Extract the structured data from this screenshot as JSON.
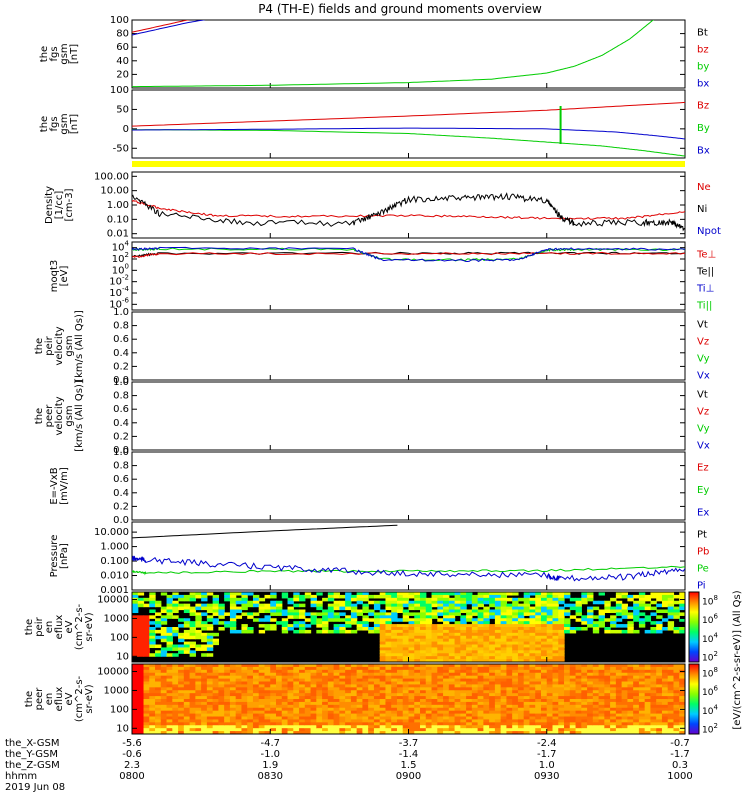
{
  "title": "P4 (TH-E) fields and ground moments overview",
  "footer": {
    "row_labels": [
      "the_X-GSM",
      "the_Y-GSM",
      "the_Z-GSM",
      "hhmm",
      "2019 Jun 08"
    ],
    "columns": [
      {
        "x": "-5.6",
        "y": "-0.6",
        "z": "2.3",
        "time": "0800"
      },
      {
        "x": "-4.7",
        "y": "-1.0",
        "z": "1.9",
        "time": "0830"
      },
      {
        "x": "-3.7",
        "y": "-1.4",
        "z": "1.5",
        "time": "0900"
      },
      {
        "x": "-2.4",
        "y": "-1.7",
        "z": "1.0",
        "time": "0930"
      },
      {
        "x": "-0.7",
        "y": "-1.7",
        "z": "0.3",
        "time": "1000"
      }
    ]
  },
  "colorbar": {
    "label": "[eV/(cm^2-s-sr-eV)] (All Qs)",
    "ticks_top": [
      "10^8",
      "10^6",
      "10^4",
      "10^2"
    ],
    "ticks_bottom": [
      "10^8",
      "10^6",
      "10^4",
      "10^2"
    ],
    "colors": [
      "#ff0000",
      "#ff8800",
      "#ffff00",
      "#88ff00",
      "#00ff66",
      "#00ccff",
      "#0044ff",
      "#6600cc"
    ]
  },
  "chart_data": [
    {
      "type": "line",
      "id": "fgs_btot",
      "ylabel": [
        "the",
        "fgs",
        "gsm",
        "[nT]"
      ],
      "ylim": [
        0,
        100
      ],
      "scale": "linear",
      "yticks": [
        "100",
        "80",
        "60",
        "40",
        "20"
      ],
      "x_hours": [
        8.0,
        10.0
      ],
      "legend": [
        {
          "name": "Bt",
          "color": "#000000"
        },
        {
          "name": "bz",
          "color": "#dd0000"
        },
        {
          "name": "by",
          "color": "#00cc00"
        },
        {
          "name": "bx",
          "color": "#0000cc"
        }
      ],
      "series": [
        {
          "name": "bz",
          "color": "#dd0000",
          "x": [
            8.0,
            8.2,
            8.4
          ],
          "y": [
            82,
            100,
            115
          ]
        },
        {
          "name": "bx",
          "color": "#0000cc",
          "x": [
            8.0,
            8.2,
            8.4
          ],
          "y": [
            78,
            96,
            110
          ]
        },
        {
          "name": "by",
          "color": "#00cc00",
          "x": [
            8.0,
            8.5,
            9.0,
            9.3,
            9.5,
            9.6,
            9.7,
            9.8,
            9.9
          ],
          "y": [
            2,
            4,
            8,
            13,
            22,
            32,
            48,
            72,
            105
          ]
        }
      ]
    },
    {
      "type": "line",
      "id": "fgs_gsm",
      "ylabel": [
        "the",
        "fgs",
        "gsm",
        "[nT]"
      ],
      "ylim": [
        -75,
        100
      ],
      "scale": "linear",
      "yticks": [
        "100",
        "50",
        "0",
        "-50"
      ],
      "x_hours": [
        8.0,
        10.0
      ],
      "legend": [
        {
          "name": "Bz",
          "color": "#dd0000"
        },
        {
          "name": "By",
          "color": "#00cc00"
        },
        {
          "name": "Bx",
          "color": "#0000cc"
        }
      ],
      "series": [
        {
          "name": "Bz",
          "color": "#dd0000",
          "x": [
            8.0,
            8.5,
            9.0,
            9.5,
            10.0
          ],
          "y": [
            7,
            20,
            33,
            48,
            68
          ]
        },
        {
          "name": "By",
          "color": "#00cc00",
          "x": [
            8.0,
            8.5,
            9.0,
            9.3,
            9.5,
            9.7,
            9.85,
            10.0
          ],
          "y": [
            -2,
            -4,
            -12,
            -24,
            -34,
            -44,
            -56,
            -70
          ]
        },
        {
          "name": "Bx",
          "color": "#0000cc",
          "x": [
            8.0,
            8.5,
            9.0,
            9.5,
            9.75,
            9.9,
            10.0
          ],
          "y": [
            -3,
            -1,
            2,
            0,
            -8,
            -18,
            -26
          ]
        }
      ]
    },
    {
      "type": "line",
      "id": "density",
      "ylabel": [
        "Density",
        "[1/cc]",
        "[cm-3]"
      ],
      "ylim": [
        0.005,
        200
      ],
      "scale": "log",
      "yticks": [
        "100.00",
        "10.00",
        "1.00",
        "0.10",
        "0.01"
      ],
      "x_hours": [
        8.0,
        10.0
      ],
      "legend": [
        {
          "name": "Ne",
          "color": "#dd0000"
        },
        {
          "name": "Ni",
          "color": "#000000"
        },
        {
          "name": "Npot",
          "color": "#0000cc"
        }
      ],
      "series": [
        {
          "name": "Ne",
          "color": "#dd0000",
          "x": [
            8.0,
            8.1,
            8.3,
            8.6,
            9.0,
            9.3,
            9.55,
            9.8,
            10.0
          ],
          "y": [
            2.0,
            0.6,
            0.18,
            0.16,
            0.18,
            0.15,
            0.11,
            0.12,
            0.35
          ]
        },
        {
          "name": "Ni",
          "color": "#000000",
          "x": [
            8.0,
            8.1,
            8.4,
            8.8,
            8.9,
            9.0,
            9.2,
            9.35,
            9.5,
            9.55,
            9.6,
            9.85,
            9.95,
            10.0
          ],
          "y": [
            5.0,
            0.25,
            0.06,
            0.05,
            0.3,
            2.5,
            3.0,
            4.0,
            2.0,
            0.15,
            0.05,
            0.06,
            0.06,
            0.02
          ]
        }
      ]
    },
    {
      "type": "line",
      "id": "temperature",
      "ylabel": [
        "moqt3",
        "[eV]"
      ],
      "ylim": [
        1e-07,
        100000
      ],
      "scale": "log",
      "yticks": [
        "10^4",
        "10^2",
        "10^0",
        "10^-2",
        "10^-4",
        "10^-6"
      ],
      "x_hours": [
        8.0,
        10.0
      ],
      "legend": [
        {
          "name": "Te⊥",
          "color": "#dd0000"
        },
        {
          "name": "Te||",
          "color": "#000000"
        },
        {
          "name": "Ti⊥",
          "color": "#0000cc"
        },
        {
          "name": "Ti||",
          "color": "#00cc00"
        }
      ],
      "series": [
        {
          "name": "Te||",
          "color": "#000000",
          "x": [
            8.0,
            8.1,
            9.0,
            9.5,
            10.0
          ],
          "y": [
            300,
            1000,
            1000,
            1000,
            1200
          ]
        },
        {
          "name": "Te⊥",
          "color": "#dd0000",
          "x": [
            8.0,
            8.1,
            9.0,
            9.5,
            10.0
          ],
          "y": [
            200,
            900,
            900,
            900,
            1100
          ]
        },
        {
          "name": "Ti||",
          "color": "#00cc00",
          "x": [
            8.0,
            8.1,
            8.8,
            8.9,
            9.2,
            9.4,
            9.5,
            9.6,
            10.0
          ],
          "y": [
            4000,
            6000,
            5000,
            100,
            70,
            100,
            4000,
            5000,
            4500
          ]
        },
        {
          "name": "Ti⊥",
          "color": "#0000cc",
          "x": [
            8.0,
            8.1,
            8.8,
            8.9,
            9.2,
            9.4,
            9.5,
            9.6,
            10.0
          ],
          "y": [
            5000,
            8000,
            6000,
            80,
            50,
            80,
            5000,
            6000,
            5000
          ]
        }
      ]
    },
    {
      "type": "line",
      "id": "peir_velocity",
      "ylabel": [
        "the",
        "peir",
        "velocity",
        "gsm",
        "[km/s (All Qs)]"
      ],
      "ylim": [
        0,
        1
      ],
      "scale": "linear",
      "yticks": [
        "1.0",
        "0.8",
        "0.6",
        "0.4",
        "0.2",
        "0.0"
      ],
      "x_hours": [
        8.0,
        10.0
      ],
      "legend": [
        {
          "name": "Vt",
          "color": "#000000"
        },
        {
          "name": "Vz",
          "color": "#dd0000"
        },
        {
          "name": "Vy",
          "color": "#00cc00"
        },
        {
          "name": "Vx",
          "color": "#0000cc"
        }
      ],
      "series": []
    },
    {
      "type": "line",
      "id": "peer_velocity",
      "ylabel": [
        "the",
        "peer",
        "velocity",
        "gsm",
        "[km/s (All Qs)]"
      ],
      "ylim": [
        0,
        1
      ],
      "scale": "linear",
      "yticks": [
        "1.0",
        "0.8",
        "0.6",
        "0.4",
        "0.2",
        "0.0"
      ],
      "x_hours": [
        8.0,
        10.0
      ],
      "legend": [
        {
          "name": "Vt",
          "color": "#000000"
        },
        {
          "name": "Vz",
          "color": "#dd0000"
        },
        {
          "name": "Vy",
          "color": "#00cc00"
        },
        {
          "name": "Vx",
          "color": "#0000cc"
        }
      ],
      "series": []
    },
    {
      "type": "line",
      "id": "e_field",
      "ylabel": [
        "E=-VxB",
        "[mV/m]"
      ],
      "ylim": [
        0,
        1
      ],
      "scale": "linear",
      "yticks": [
        "1.0",
        "0.8",
        "0.6",
        "0.4",
        "0.2",
        "0.0"
      ],
      "x_hours": [
        8.0,
        10.0
      ],
      "legend": [
        {
          "name": "Ez",
          "color": "#dd0000"
        },
        {
          "name": "Ey",
          "color": "#00cc00"
        },
        {
          "name": "Ex",
          "color": "#0000cc"
        }
      ],
      "series": []
    },
    {
      "type": "line",
      "id": "pressure",
      "ylabel": [
        "Pressure",
        "[nPa]"
      ],
      "ylim": [
        0.001,
        50
      ],
      "scale": "log",
      "yticks": [
        "10.000",
        "1.000",
        "0.100",
        "0.010",
        "0.001"
      ],
      "x_hours": [
        8.0,
        10.0
      ],
      "legend": [
        {
          "name": "Pt",
          "color": "#000000"
        },
        {
          "name": "Pb",
          "color": "#dd0000"
        },
        {
          "name": "Pe",
          "color": "#00cc00"
        },
        {
          "name": "Pi",
          "color": "#0000cc"
        }
      ],
      "series": [
        {
          "name": "Pt",
          "color": "#000000",
          "x": [
            8.0,
            8.5,
            8.96
          ],
          "y": [
            4.0,
            12.0,
            30.0
          ]
        },
        {
          "name": "Pe",
          "color": "#00cc00",
          "x": [
            8.0,
            8.05,
            8.5,
            9.0,
            9.5,
            10.0
          ],
          "y": [
            0.02,
            0.015,
            0.02,
            0.02,
            0.022,
            0.04
          ]
        },
        {
          "name": "Pi",
          "color": "#0000cc",
          "x": [
            8.0,
            8.05,
            8.3,
            8.6,
            8.9,
            9.2,
            9.5,
            9.55,
            9.8,
            10.0
          ],
          "y": [
            0.15,
            0.12,
            0.06,
            0.03,
            0.015,
            0.012,
            0.01,
            0.006,
            0.008,
            0.03
          ]
        }
      ]
    },
    {
      "type": "heatmap",
      "id": "peir_eflux",
      "ylabel": [
        "the",
        "peir",
        "en",
        "eflux",
        "eV",
        "(cm^2-s-",
        "sr-eV)"
      ],
      "ylim": [
        5,
        25000
      ],
      "scale": "log",
      "yticks": [
        "10000",
        "1000",
        "100",
        "10"
      ],
      "x_hours": [
        8.0,
        10.0
      ]
    },
    {
      "type": "heatmap",
      "id": "peer_eflux",
      "ylabel": [
        "the",
        "peer",
        "en",
        "eflux",
        "eV",
        "(cm^2-s-",
        "sr-eV)"
      ],
      "ylim": [
        5,
        25000
      ],
      "scale": "log",
      "yticks": [
        "10000",
        "1000",
        "100",
        "10"
      ],
      "x_hours": [
        8.0,
        10.0
      ]
    }
  ]
}
